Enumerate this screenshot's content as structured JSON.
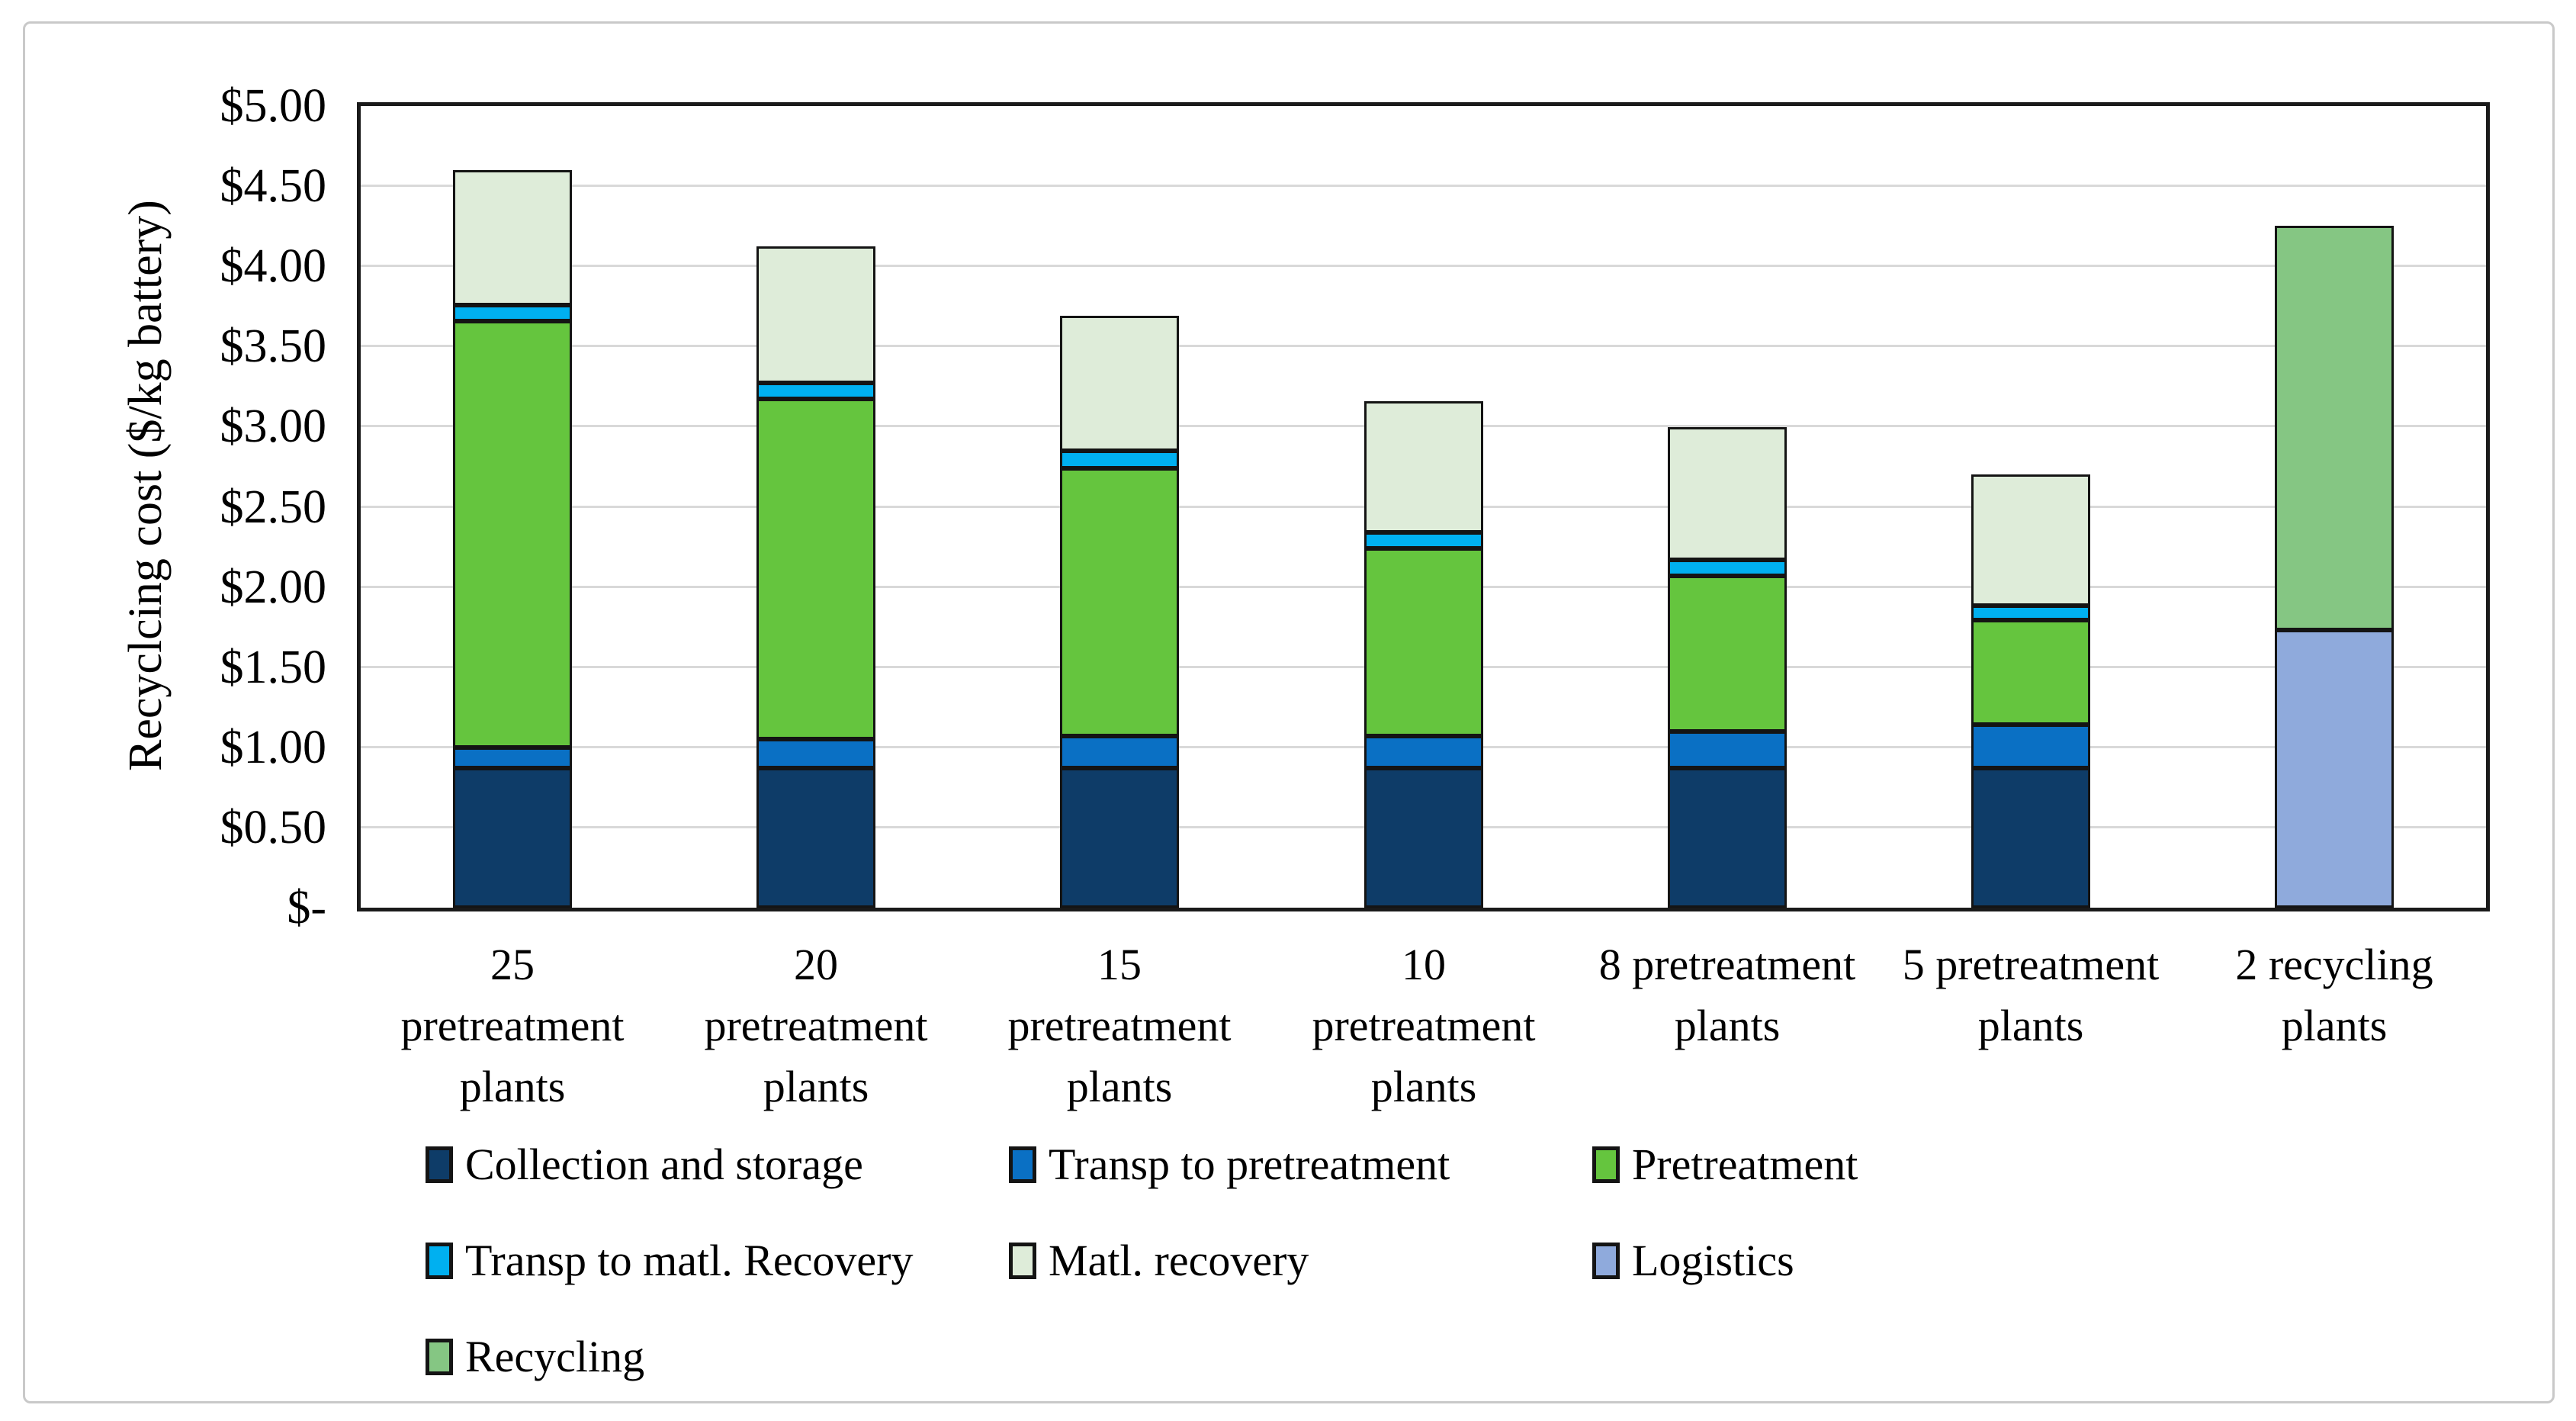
{
  "figure": {
    "background": "#ffffff",
    "border_color": "#c9c9c9"
  },
  "chart_data": {
    "type": "bar",
    "stacked": true,
    "title": "",
    "xlabel": "",
    "ylabel": "Recyclcing cost ($/kg battery)",
    "ylim": [
      0,
      5
    ],
    "ytick_interval": 0.5,
    "ytick_labels": [
      "$-",
      "$0.50",
      "$1.00",
      "$1.50",
      "$2.00",
      "$2.50",
      "$3.00",
      "$3.50",
      "$4.00",
      "$4.50",
      "$5.00"
    ],
    "grid": true,
    "gridline_color": "#d9d9d9",
    "axis_color": "#1a1a1a",
    "categories": [
      {
        "label": "25 pretreatment plants",
        "lines": [
          "25",
          "pretreatment",
          "plants"
        ]
      },
      {
        "label": "20 pretreatment plants",
        "lines": [
          "20",
          "pretreatment",
          "plants"
        ]
      },
      {
        "label": "15 pretreatment plants",
        "lines": [
          "15",
          "pretreatment",
          "plants"
        ]
      },
      {
        "label": "10 pretreatment plants",
        "lines": [
          "10",
          "pretreatment",
          "plants"
        ]
      },
      {
        "label": "8 pretreatment plants",
        "lines": [
          "8 pretreatment",
          "plants"
        ]
      },
      {
        "label": "5 pretreatment plants",
        "lines": [
          "5 pretreatment",
          "plants"
        ]
      },
      {
        "label": "2 recycling plants",
        "lines": [
          "2 recycling",
          "plants"
        ]
      }
    ],
    "series": [
      {
        "name": "Collection and storage",
        "color": "#0e3c68",
        "values": [
          0.87,
          0.87,
          0.87,
          0.87,
          0.87,
          0.87,
          0
        ]
      },
      {
        "name": "Transp to pretreatment",
        "color": "#0a70c4",
        "values": [
          0.13,
          0.18,
          0.2,
          0.2,
          0.23,
          0.27,
          0
        ]
      },
      {
        "name": "Pretreatment",
        "color": "#65c53e",
        "values": [
          2.66,
          2.12,
          1.67,
          1.17,
          0.97,
          0.65,
          0
        ]
      },
      {
        "name": "Transp to matl. Recovery",
        "color": "#00b0f0",
        "values": [
          0.1,
          0.1,
          0.11,
          0.1,
          0.1,
          0.09,
          0
        ]
      },
      {
        "name": "Matl. recovery",
        "color": "#deecd9",
        "values": [
          0.84,
          0.85,
          0.84,
          0.82,
          0.83,
          0.82,
          0
        ]
      },
      {
        "name": "Logistics",
        "color": "#8faadc",
        "values": [
          0,
          0,
          0,
          0,
          0,
          0,
          1.73
        ]
      },
      {
        "name": "Recycling",
        "color": "#85c683",
        "values": [
          0,
          0,
          0,
          0,
          0,
          0,
          2.52
        ]
      }
    ],
    "totals": [
      4.6,
      4.12,
      3.69,
      3.16,
      3.0,
      2.7,
      4.25
    ],
    "legend_position": "bottom",
    "legend_rows": [
      [
        "Collection and storage",
        "Transp to pretreatment",
        "Pretreatment"
      ],
      [
        "Transp to matl. Recovery",
        "Matl. recovery",
        "Logistics"
      ],
      [
        "Recycling"
      ]
    ]
  }
}
